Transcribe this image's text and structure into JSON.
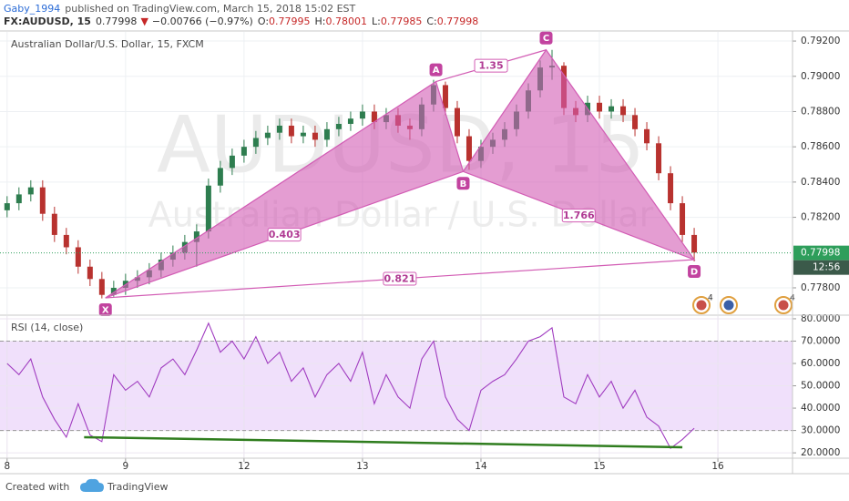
{
  "header": {
    "author": "Gaby_1994",
    "published": "published on TradingView.com, March 15, 2018 15:02 EST",
    "quote": {
      "symbol": "FX:AUDUSD, 15",
      "last": "0.77998",
      "arrow": "▼",
      "change": "−0.00766 (−0.97%)",
      "ohlc": [
        {
          "key": "O:",
          "value": "0.77995"
        },
        {
          "key": "H:",
          "value": "0.78001"
        },
        {
          "key": "L:",
          "value": "0.77985"
        },
        {
          "key": "C:",
          "value": "0.77998"
        }
      ]
    }
  },
  "footer": {
    "created": "Created with",
    "brand": "TradingView"
  },
  "chart_data": [
    {
      "type": "candlestick",
      "title": "Australian Dollar/U.S. Dollar, 15, FXCM",
      "watermark": [
        "AUDUSD, 15",
        "Australian Dollar / U.S. Dollar"
      ],
      "up_color": "#2e7d4f",
      "down_color": "#b8322f",
      "x": [
        0.0,
        0.1,
        0.2,
        0.3,
        0.4,
        0.5,
        0.6,
        0.7,
        0.8,
        0.9,
        1.0,
        1.1,
        1.2,
        1.3,
        1.4,
        1.5,
        1.6,
        1.7,
        1.8,
        1.9,
        2.0,
        2.1,
        2.2,
        2.3,
        2.4,
        2.5,
        2.6,
        2.7,
        2.8,
        2.9,
        3.0,
        3.1,
        3.2,
        3.3,
        3.4,
        3.5,
        3.6,
        3.7,
        3.8,
        3.9,
        4.0,
        4.1,
        4.2,
        4.3,
        4.4,
        4.5,
        4.6,
        4.7,
        4.8,
        4.9,
        5.0,
        5.1,
        5.2,
        5.3,
        5.4,
        5.5,
        5.6,
        5.7,
        5.8
      ],
      "open": [
        0.7824,
        0.7828,
        0.7833,
        0.7837,
        0.7822,
        0.781,
        0.7803,
        0.7792,
        0.7785,
        0.7776,
        0.778,
        0.7784,
        0.7786,
        0.779,
        0.7796,
        0.78,
        0.7806,
        0.7812,
        0.7838,
        0.7848,
        0.7855,
        0.786,
        0.7865,
        0.7868,
        0.7872,
        0.7866,
        0.7868,
        0.7864,
        0.787,
        0.7873,
        0.7876,
        0.788,
        0.7874,
        0.7878,
        0.7872,
        0.787,
        0.7884,
        0.7895,
        0.7882,
        0.7866,
        0.7852,
        0.786,
        0.7864,
        0.787,
        0.788,
        0.7892,
        0.7905,
        0.7906,
        0.7882,
        0.7878,
        0.7885,
        0.788,
        0.7883,
        0.7878,
        0.787,
        0.7862,
        0.7845,
        0.7828,
        0.781
      ],
      "high": [
        0.7832,
        0.7837,
        0.7841,
        0.7841,
        0.7826,
        0.7814,
        0.7807,
        0.7796,
        0.7789,
        0.7784,
        0.7788,
        0.779,
        0.7794,
        0.78,
        0.7804,
        0.781,
        0.7816,
        0.7842,
        0.7852,
        0.7859,
        0.7864,
        0.7869,
        0.7872,
        0.7876,
        0.7876,
        0.7872,
        0.7872,
        0.7874,
        0.7877,
        0.788,
        0.7884,
        0.7884,
        0.7882,
        0.7882,
        0.7876,
        0.7888,
        0.7898,
        0.7897,
        0.7886,
        0.787,
        0.7864,
        0.7868,
        0.7874,
        0.7884,
        0.7896,
        0.7909,
        0.7915,
        0.7908,
        0.7886,
        0.7889,
        0.7889,
        0.7887,
        0.7887,
        0.7882,
        0.7874,
        0.7866,
        0.7849,
        0.7832,
        0.7814
      ],
      "low": [
        0.782,
        0.7824,
        0.7829,
        0.7818,
        0.7806,
        0.7799,
        0.7788,
        0.7781,
        0.7774,
        0.7775,
        0.7776,
        0.778,
        0.7782,
        0.7786,
        0.7792,
        0.7796,
        0.7792,
        0.7808,
        0.7834,
        0.7844,
        0.7851,
        0.7856,
        0.7861,
        0.7864,
        0.7862,
        0.7862,
        0.786,
        0.786,
        0.7866,
        0.7869,
        0.7872,
        0.787,
        0.787,
        0.7868,
        0.7864,
        0.7866,
        0.788,
        0.7878,
        0.7862,
        0.7847,
        0.7848,
        0.7856,
        0.786,
        0.7866,
        0.7876,
        0.7888,
        0.7898,
        0.7878,
        0.7874,
        0.7874,
        0.7876,
        0.7876,
        0.7874,
        0.7866,
        0.7858,
        0.7841,
        0.7824,
        0.7806,
        0.7795
      ],
      "close": [
        0.7828,
        0.7833,
        0.7837,
        0.7822,
        0.781,
        0.7803,
        0.7792,
        0.7785,
        0.7776,
        0.778,
        0.7784,
        0.7786,
        0.779,
        0.7796,
        0.78,
        0.7806,
        0.7812,
        0.7838,
        0.7848,
        0.7855,
        0.786,
        0.7865,
        0.7868,
        0.7872,
        0.7866,
        0.7868,
        0.7864,
        0.787,
        0.7873,
        0.7876,
        0.788,
        0.7874,
        0.7878,
        0.7872,
        0.787,
        0.7884,
        0.7895,
        0.7882,
        0.7866,
        0.7852,
        0.786,
        0.7864,
        0.787,
        0.788,
        0.7892,
        0.7905,
        0.7906,
        0.7882,
        0.7878,
        0.7885,
        0.788,
        0.7883,
        0.7878,
        0.787,
        0.7862,
        0.7845,
        0.7828,
        0.781,
        0.78
      ],
      "pattern": {
        "color": "#d25cb4",
        "points": [
          {
            "label": "X",
            "x": 0.83,
            "y": 0.77743
          },
          {
            "label": "A",
            "x": 3.62,
            "y": 0.7897
          },
          {
            "label": "B",
            "x": 3.85,
            "y": 0.7846
          },
          {
            "label": "C",
            "x": 4.55,
            "y": 0.7915
          },
          {
            "label": "D",
            "x": 5.8,
            "y": 0.7796
          }
        ],
        "ratios": [
          0.403,
          1.35,
          1.766,
          0.821
        ]
      },
      "last_price": 0.77998,
      "last_color": "#2e9e5b",
      "countdown": "12:56",
      "event_badges": [
        "4",
        "4"
      ],
      "xlim": [
        -0.06,
        6.63
      ],
      "ylim": [
        0.7765,
        0.79252
      ],
      "yticks": [
        {
          "value": 0.778,
          "label": "0.77800"
        },
        {
          "value": 0.782,
          "label": "0.78200"
        },
        {
          "value": 0.784,
          "label": "0.78400"
        },
        {
          "value": 0.786,
          "label": "0.78600"
        },
        {
          "value": 0.788,
          "label": "0.78800"
        },
        {
          "value": 0.79,
          "label": "0.79000"
        },
        {
          "value": 0.792,
          "label": "0.79200"
        }
      ],
      "grid": true
    },
    {
      "type": "line",
      "title": "RSI (14, close)",
      "color": "#a03cc0",
      "x": [
        0.0,
        0.1,
        0.2,
        0.3,
        0.4,
        0.5,
        0.6,
        0.7,
        0.8,
        0.9,
        1.0,
        1.1,
        1.2,
        1.3,
        1.4,
        1.5,
        1.6,
        1.7,
        1.8,
        1.9,
        2.0,
        2.1,
        2.2,
        2.3,
        2.4,
        2.5,
        2.6,
        2.7,
        2.8,
        2.9,
        3.0,
        3.1,
        3.2,
        3.3,
        3.4,
        3.5,
        3.6,
        3.7,
        3.8,
        3.9,
        4.0,
        4.1,
        4.2,
        4.3,
        4.4,
        4.5,
        4.6,
        4.7,
        4.8,
        4.9,
        5.0,
        5.1,
        5.2,
        5.3,
        5.4,
        5.5,
        5.6,
        5.7,
        5.8
      ],
      "values": [
        60,
        55,
        62,
        45,
        35,
        27,
        42,
        28,
        25,
        55,
        48,
        52,
        45,
        58,
        62,
        55,
        66,
        78,
        65,
        70,
        62,
        72,
        60,
        65,
        52,
        58,
        45,
        55,
        60,
        52,
        65,
        42,
        55,
        45,
        40,
        62,
        70,
        45,
        35,
        30,
        48,
        52,
        55,
        62,
        70,
        72,
        76,
        45,
        42,
        55,
        45,
        52,
        40,
        48,
        36,
        32,
        22,
        26,
        31
      ],
      "band": [
        30,
        70
      ],
      "band_color": "#f0e0fb",
      "trendline": {
        "color": "#2f7d1e",
        "x": [
          0.65,
          5.7
        ],
        "y": [
          27,
          22.5
        ]
      },
      "xlim": [
        -0.06,
        6.63
      ],
      "ylim": [
        17.6,
        81.2
      ],
      "yticks": [
        {
          "value": 20,
          "label": "20.0000"
        },
        {
          "value": 30,
          "label": "30.0000"
        },
        {
          "value": 40,
          "label": "40.0000"
        },
        {
          "value": 50,
          "label": "50.0000"
        },
        {
          "value": 60,
          "label": "60.0000"
        },
        {
          "value": 70,
          "label": "70.0000"
        },
        {
          "value": 80,
          "label": "80.0000"
        }
      ],
      "xticks": [
        {
          "value": 0,
          "label": "8"
        },
        {
          "value": 1,
          "label": "9"
        },
        {
          "value": 2,
          "label": "12"
        },
        {
          "value": 3,
          "label": "13"
        },
        {
          "value": 4,
          "label": "14"
        },
        {
          "value": 5,
          "label": "15"
        },
        {
          "value": 6,
          "label": "16"
        }
      ],
      "grid": true
    }
  ]
}
